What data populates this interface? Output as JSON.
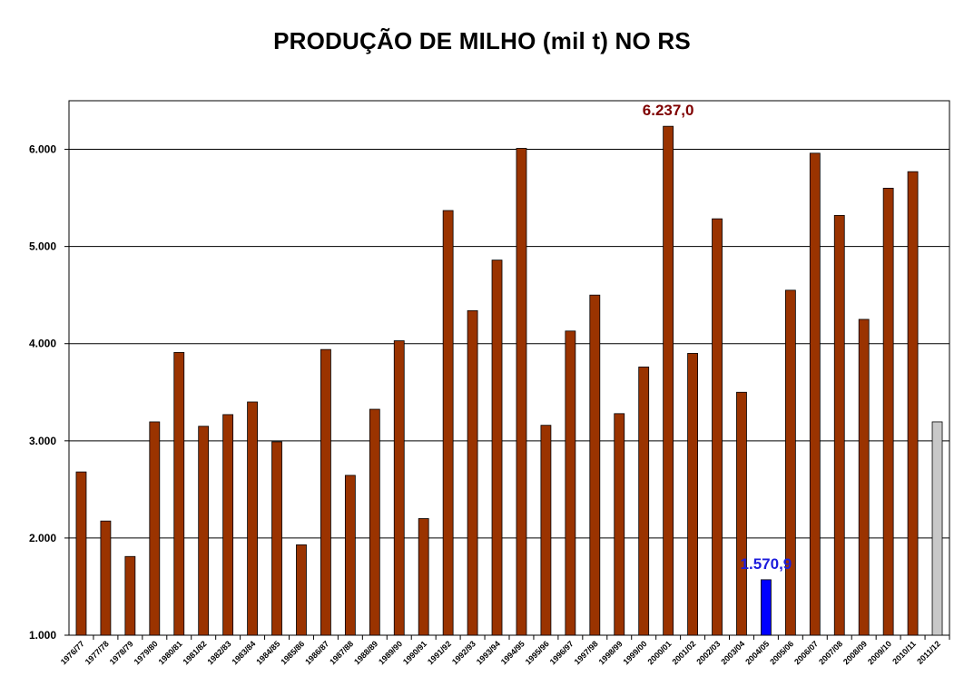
{
  "chart_data": {
    "type": "bar",
    "title": "PRODUÇÃO DE MILHO (mil t) NO RS",
    "xlabel": "",
    "ylabel": "",
    "ylim": [
      1000,
      6500
    ],
    "yticks": [
      1000,
      2000,
      3000,
      4000,
      5000,
      6000
    ],
    "ytick_labels": [
      "1.000",
      "2.000",
      "3.000",
      "4.000",
      "5.000",
      "6.000"
    ],
    "grid": true,
    "categories": [
      "1976/77",
      "1977/78",
      "1978/79",
      "1979/80",
      "1980/81",
      "1981/82",
      "1982/83",
      "1983/84",
      "1984/85",
      "1985/86",
      "1986/87",
      "1987/88",
      "1988/89",
      "1989/90",
      "1990/91",
      "1991/92",
      "1992/93",
      "1993/94",
      "1994/95",
      "1995/96",
      "1996/97",
      "1997/98",
      "1998/99",
      "1999/00",
      "2000/01",
      "2001/02",
      "2002/03",
      "2003/04",
      "2004/05",
      "2005/06",
      "2006/07",
      "2007/08",
      "2008/09",
      "2009/10",
      "2010/11",
      "2011/12"
    ],
    "values": [
      2680,
      2175,
      1810,
      3195,
      3910,
      3150,
      3270,
      3400,
      2990,
      1930,
      3940,
      2645,
      3325,
      4030,
      2200,
      5370,
      4340,
      4860,
      6010,
      3160,
      4130,
      4500,
      3280,
      3760,
      6237.0,
      3900,
      5285,
      3500,
      1570.9,
      4550,
      5960,
      5320,
      4250,
      5600,
      5770,
      3195
    ],
    "colors": {
      "default": "#9a3300",
      "highlight_min": "#0000ff",
      "projection": "#c8c8c8",
      "label_max": "#7f0000",
      "label_min": "#1c1cdc"
    },
    "bar_colors": {
      "2004/05": "highlight_min",
      "2011/12": "projection"
    },
    "annotations": [
      {
        "category": "2000/01",
        "text": "6.237,0",
        "color_key": "label_max"
      },
      {
        "category": "2004/05",
        "text": "1.570,9",
        "color_key": "label_min"
      }
    ]
  }
}
